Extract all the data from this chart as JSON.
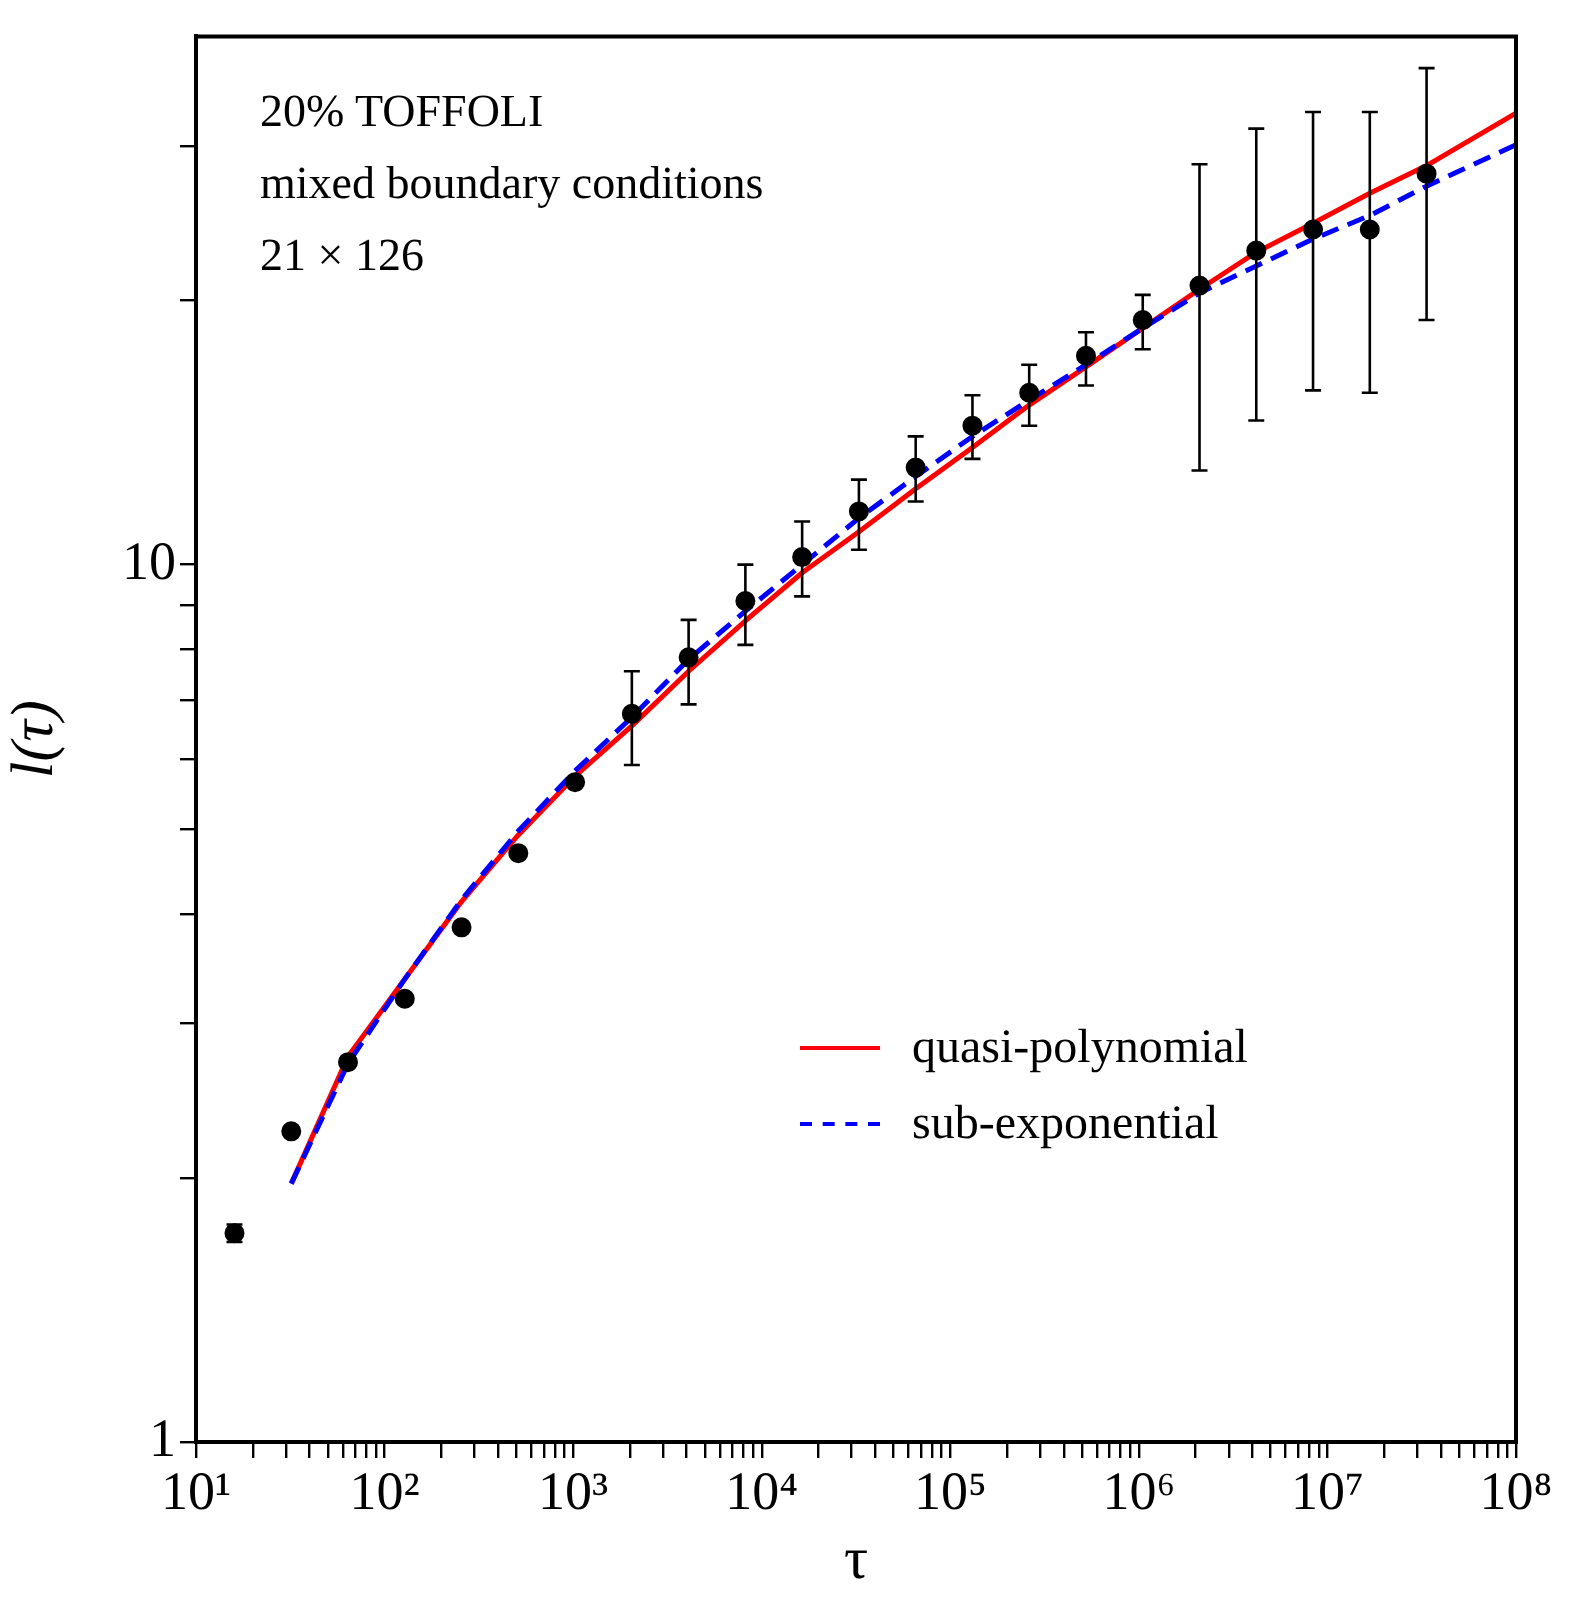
{
  "chart_data": {
    "type": "scatter",
    "xlabel": "τ",
    "ylabel": "l(τ)",
    "log": "xy",
    "xlim": [
      10,
      100000000
    ],
    "ylim": [
      1,
      40
    ],
    "xticks": [
      {
        "value": 10,
        "label": "10¹"
      },
      {
        "value": 20,
        "label": null
      },
      {
        "value": 30,
        "label": null
      },
      {
        "value": 40,
        "label": null
      },
      {
        "value": 50,
        "label": null
      },
      {
        "value": 60,
        "label": null
      },
      {
        "value": 70,
        "label": null
      },
      {
        "value": 80,
        "label": null
      },
      {
        "value": 90,
        "label": null
      },
      {
        "value": 100,
        "label": "10²"
      },
      {
        "value": 200,
        "label": null
      },
      {
        "value": 300,
        "label": null
      },
      {
        "value": 400,
        "label": null
      },
      {
        "value": 500,
        "label": null
      },
      {
        "value": 600,
        "label": null
      },
      {
        "value": 700,
        "label": null
      },
      {
        "value": 800,
        "label": null
      },
      {
        "value": 900,
        "label": null
      },
      {
        "value": 1000,
        "label": "10³"
      },
      {
        "value": 2000,
        "label": null
      },
      {
        "value": 3000,
        "label": null
      },
      {
        "value": 4000,
        "label": null
      },
      {
        "value": 5000,
        "label": null
      },
      {
        "value": 6000,
        "label": null
      },
      {
        "value": 7000,
        "label": null
      },
      {
        "value": 8000,
        "label": null
      },
      {
        "value": 9000,
        "label": null
      },
      {
        "value": 10000,
        "label": "10⁴"
      },
      {
        "value": 20000,
        "label": null
      },
      {
        "value": 30000,
        "label": null
      },
      {
        "value": 40000,
        "label": null
      },
      {
        "value": 50000,
        "label": null
      },
      {
        "value": 60000,
        "label": null
      },
      {
        "value": 70000,
        "label": null
      },
      {
        "value": 80000,
        "label": null
      },
      {
        "value": 90000,
        "label": null
      },
      {
        "value": 100000,
        "label": "10⁵"
      },
      {
        "value": 200000,
        "label": null
      },
      {
        "value": 300000,
        "label": null
      },
      {
        "value": 400000,
        "label": null
      },
      {
        "value": 500000,
        "label": null
      },
      {
        "value": 600000,
        "label": null
      },
      {
        "value": 700000,
        "label": null
      },
      {
        "value": 800000,
        "label": null
      },
      {
        "value": 900000,
        "label": null
      },
      {
        "value": 1000000,
        "label": "10⁶"
      },
      {
        "value": 2000000,
        "label": null
      },
      {
        "value": 3000000,
        "label": null
      },
      {
        "value": 4000000,
        "label": null
      },
      {
        "value": 5000000,
        "label": null
      },
      {
        "value": 6000000,
        "label": null
      },
      {
        "value": 7000000,
        "label": null
      },
      {
        "value": 8000000,
        "label": null
      },
      {
        "value": 9000000,
        "label": null
      },
      {
        "value": 10000000,
        "label": "10⁷"
      },
      {
        "value": 20000000,
        "label": null
      },
      {
        "value": 30000000,
        "label": null
      },
      {
        "value": 40000000,
        "label": null
      },
      {
        "value": 50000000,
        "label": null
      },
      {
        "value": 60000000,
        "label": null
      },
      {
        "value": 70000000,
        "label": null
      },
      {
        "value": 80000000,
        "label": null
      },
      {
        "value": 90000000,
        "label": null
      },
      {
        "value": 100000000,
        "label": "10⁸"
      }
    ],
    "yticks": [
      1,
      {
        "value": 2,
        "label": null
      },
      {
        "value": 3,
        "label": null
      },
      {
        "value": 4,
        "label": null
      },
      {
        "value": 5,
        "label": null
      },
      {
        "value": 6,
        "label": null
      },
      {
        "value": 7,
        "label": null
      },
      {
        "value": 8,
        "label": null
      },
      {
        "value": 9,
        "label": null
      },
      10,
      {
        "value": 20,
        "label": null
      },
      {
        "value": 30,
        "label": null
      }
    ],
    "annotations": [
      "20% TOFFOLI",
      "mixed boundary conditions",
      "21 × 126"
    ],
    "legend": "bottom right",
    "grid": false,
    "series": [
      {
        "color": "#000000",
        "marker": "circle",
        "x": [
          16,
          32,
          64,
          128,
          256,
          512,
          1024,
          2048,
          4096,
          8192,
          16384,
          32768,
          65536,
          131072,
          262144,
          524288,
          1048576,
          2097152,
          4194304,
          8388608,
          16777216,
          33554432
        ],
        "values": [
          1.73,
          2.26,
          2.71,
          3.2,
          3.86,
          4.69,
          5.65,
          6.76,
          7.84,
          9.09,
          10.2,
          11.5,
          12.9,
          14.4,
          15.7,
          17.3,
          19.0,
          20.8,
          22.8,
          24.1,
          24.1,
          27.9
        ],
        "errors": [
          [
            1.69,
            1.77
          ],
          null,
          null,
          null,
          null,
          null,
          null,
          [
            5.91,
            7.56
          ],
          [
            6.93,
            8.65
          ],
          [
            8.1,
            10.0
          ],
          [
            9.2,
            11.2
          ],
          [
            10.4,
            12.5
          ],
          [
            11.8,
            14.0
          ],
          [
            13.2,
            15.6
          ],
          [
            14.4,
            16.9
          ],
          [
            16.0,
            18.4
          ],
          [
            17.6,
            20.3
          ],
          [
            12.8,
            28.6
          ],
          [
            14.6,
            31.4
          ],
          [
            15.8,
            32.8
          ],
          [
            15.7,
            32.8
          ],
          [
            19.0,
            36.8
          ]
        ]
      },
      {
        "type": "line",
        "name": "quasi-polynomial",
        "color": "#ff0000",
        "line_style": "solid",
        "marker": "none",
        "x": [
          32,
          64,
          128,
          256,
          512,
          1024,
          2048,
          4096,
          8192,
          16384,
          32768,
          65536,
          131072,
          262144,
          524288,
          1048576,
          2097152,
          4194304,
          8388608,
          16777216,
          33554432,
          100000000
        ],
        "values": [
          1.97,
          2.75,
          3.37,
          4.13,
          4.92,
          5.74,
          6.55,
          7.56,
          8.63,
          9.79,
          10.9,
          12.2,
          13.6,
          15.2,
          16.8,
          18.6,
          20.6,
          22.7,
          24.5,
          26.5,
          28.5,
          32.7
        ]
      },
      {
        "type": "line",
        "name": "sub-exponential",
        "color": "#0000ff",
        "line_style": "dashed",
        "marker": "none",
        "x": [
          32,
          64,
          128,
          256,
          512,
          1024,
          2048,
          4096,
          8192,
          16384,
          32768,
          65536,
          131072,
          262144,
          524288,
          1048576,
          2097152,
          4194304,
          8388608,
          16777216,
          33554432,
          100000000
        ],
        "values": [
          1.97,
          2.7,
          3.37,
          4.15,
          4.97,
          5.82,
          6.7,
          7.8,
          8.85,
          10.0,
          11.3,
          12.6,
          14.0,
          15.4,
          16.9,
          18.6,
          20.4,
          21.9,
          23.5,
          25.0,
          27.0,
          30.1
        ]
      }
    ]
  }
}
